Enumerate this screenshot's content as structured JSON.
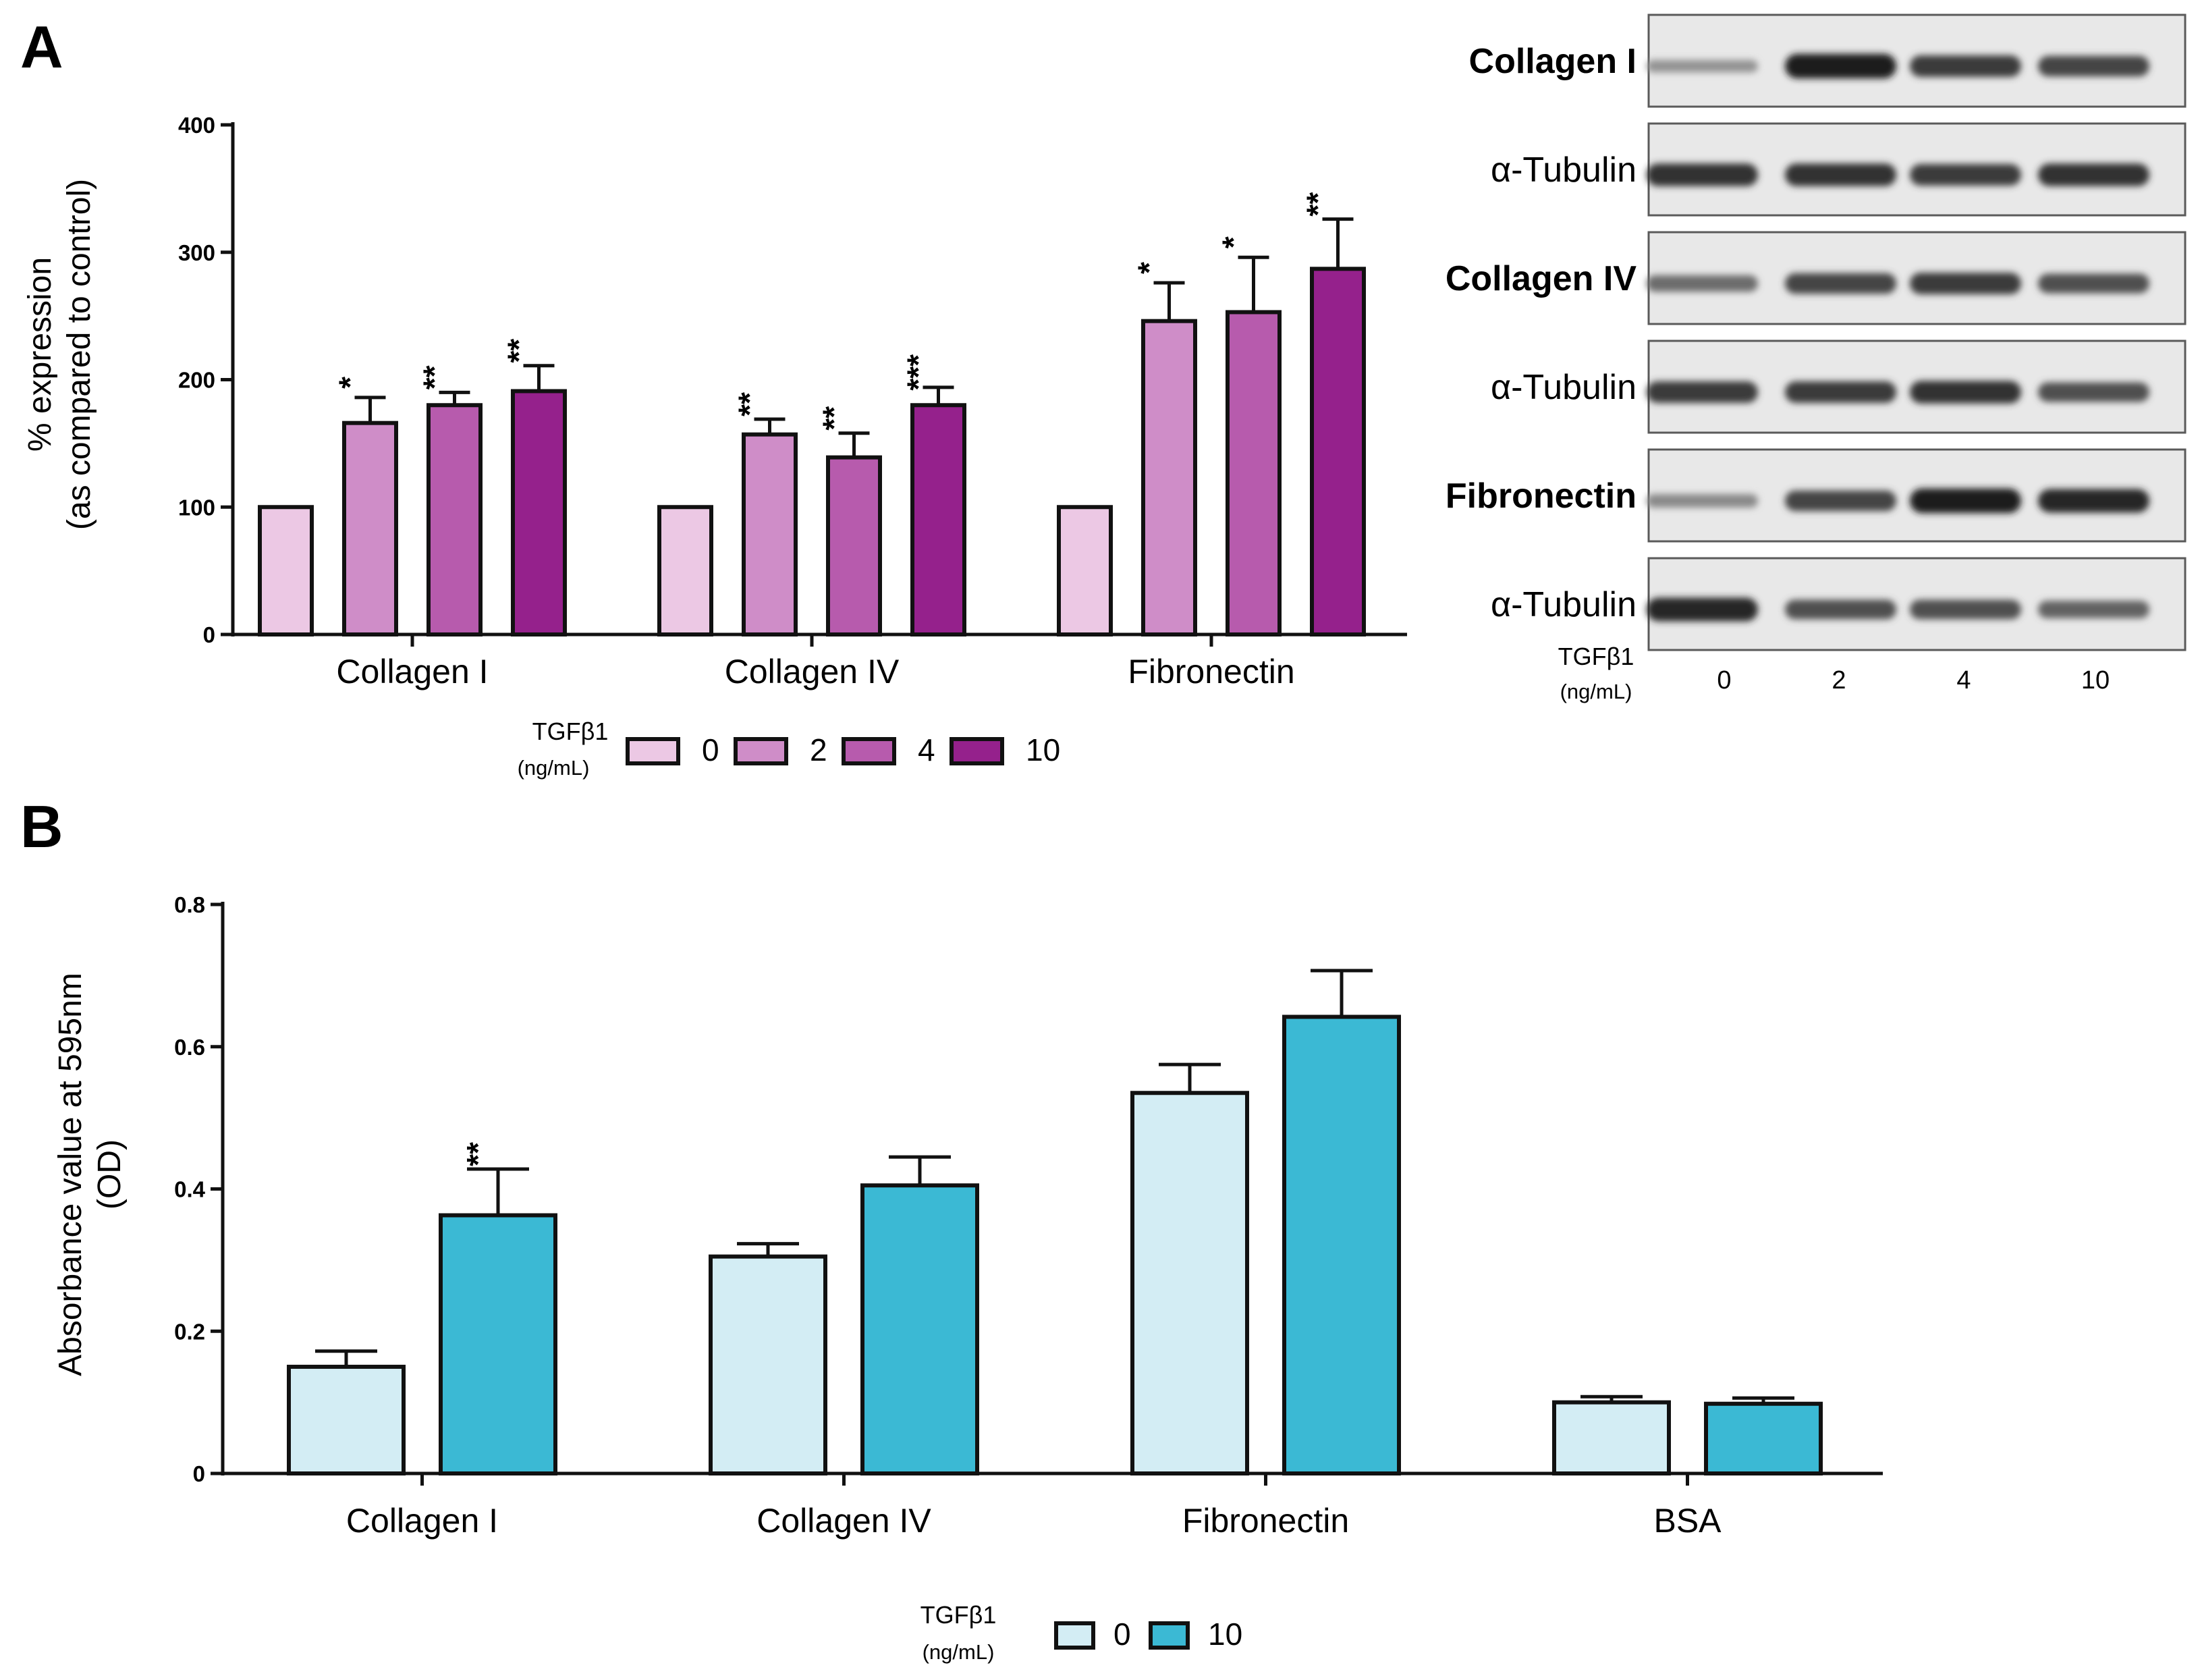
{
  "panel_a": {
    "letter": "A"
  },
  "panel_b": {
    "letter": "B"
  },
  "chart_data": [
    {
      "id": "A",
      "type": "bar",
      "ylabel_lines": [
        "% expression",
        "(as compared to control)"
      ],
      "ylim": [
        0,
        400
      ],
      "yticks": [
        0,
        100,
        200,
        300,
        400
      ],
      "categories": [
        "Collagen I",
        "Collagen IV",
        "Fibronectin"
      ],
      "legend": {
        "title": "TGFβ1",
        "unit": "(ng/mL)"
      },
      "series": [
        {
          "name": "0",
          "color": "#ecc8e4",
          "values": [
            100,
            100,
            100
          ],
          "errors": [
            0,
            0,
            0
          ],
          "sig": [
            "",
            "",
            ""
          ]
        },
        {
          "name": "2",
          "color": "#cf8dc8",
          "values": [
            166,
            157,
            246
          ],
          "errors": [
            20,
            12,
            30
          ],
          "sig": [
            "*",
            "**",
            "*"
          ]
        },
        {
          "name": "4",
          "color": "#b75bad",
          "values": [
            180,
            139,
            253
          ],
          "errors": [
            10,
            19,
            43
          ],
          "sig": [
            "**",
            "**",
            "*"
          ]
        },
        {
          "name": "10",
          "color": "#95218c",
          "values": [
            191,
            180,
            287
          ],
          "errors": [
            20,
            14,
            39
          ],
          "sig": [
            "**",
            "***",
            "**"
          ]
        }
      ]
    },
    {
      "id": "B",
      "type": "bar",
      "ylabel_lines": [
        "Absorbance value at 595nm",
        "(OD)"
      ],
      "ylim": [
        0,
        0.8
      ],
      "yticks": [
        "0",
        "0.2",
        "0.4",
        "0.6",
        "0.8"
      ],
      "categories": [
        "Collagen I",
        "Collagen IV",
        "Fibronectin",
        "BSA"
      ],
      "legend": {
        "title": "TGFβ1",
        "unit": "(ng/mL)"
      },
      "series": [
        {
          "name": "0",
          "color": "#d3edf4",
          "values": [
            0.15,
            0.305,
            0.535,
            0.1
          ],
          "errors": [
            0.022,
            0.018,
            0.04,
            0.008
          ],
          "sig": [
            "",
            "",
            "",
            ""
          ]
        },
        {
          "name": "10",
          "color": "#3bb9d4",
          "values": [
            0.363,
            0.405,
            0.642,
            0.098
          ],
          "errors": [
            0.065,
            0.04,
            0.065,
            0.008
          ],
          "sig": [
            "**",
            "",
            "",
            ""
          ]
        }
      ]
    }
  ],
  "western_blot": {
    "rows": [
      {
        "label": "Collagen I",
        "bold": true,
        "band_intensity": [
          0.35,
          0.95,
          0.8,
          0.75
        ]
      },
      {
        "label": "α-Tubulin",
        "bold": false,
        "band_intensity": [
          0.85,
          0.85,
          0.8,
          0.85
        ]
      },
      {
        "label": "Collagen IV",
        "bold": true,
        "band_intensity": [
          0.55,
          0.75,
          0.8,
          0.7
        ]
      },
      {
        "label": "α-Tubulin",
        "bold": false,
        "band_intensity": [
          0.8,
          0.8,
          0.85,
          0.7
        ]
      },
      {
        "label": "Fibronectin",
        "bold": true,
        "band_intensity": [
          0.4,
          0.75,
          0.95,
          0.9
        ]
      },
      {
        "label": "α-Tubulin",
        "bold": false,
        "band_intensity": [
          0.9,
          0.7,
          0.7,
          0.6
        ]
      }
    ],
    "lane_header": {
      "title": "TGFβ1",
      "unit": "(ng/mL)"
    },
    "lanes": [
      "0",
      "2",
      "4",
      "10"
    ]
  }
}
